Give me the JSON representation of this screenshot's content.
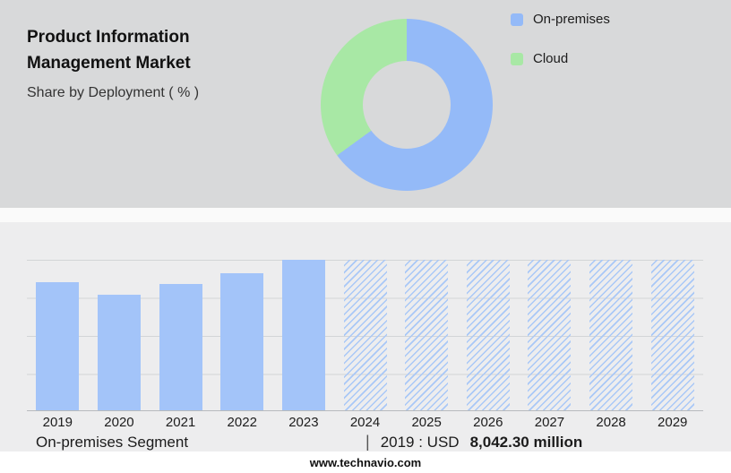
{
  "header": {
    "title": "Product Information Management Market",
    "subtitle": "Share by Deployment ( % )"
  },
  "colors": {
    "on_premises_blue": "#94baf8",
    "cloud_green": "#a8e8a5",
    "bar_blue": "#a3c4f9",
    "hatch_blue": "#a9c8f7",
    "top_background": "#d8d9da",
    "bottom_background": "#ededee"
  },
  "chart_data": [
    {
      "type": "pie",
      "subtype": "donut",
      "title": "Share by Deployment ( % )",
      "labels": [
        "On-premises",
        "Cloud"
      ],
      "values": [
        65,
        35
      ],
      "colors": [
        "#94baf8",
        "#a8e8a5"
      ],
      "legend_position": "right"
    },
    {
      "type": "bar",
      "title": "On-premises Segment (USD million)",
      "categories": [
        "2019",
        "2020",
        "2021",
        "2022",
        "2023",
        "2024",
        "2025",
        "2026",
        "2027",
        "2028",
        "2029"
      ],
      "values": [
        8042.3,
        7350,
        7950,
        8650,
        9500,
        null,
        null,
        null,
        null,
        null,
        null
      ],
      "bar_heights_pct": [
        85,
        77,
        84,
        91,
        100,
        100,
        100,
        100,
        100,
        100,
        100
      ],
      "forecast_from": "2024",
      "forecast_style": "hatched",
      "xlabel": "",
      "ylabel": "",
      "grid": true,
      "annotation": "2019 : USD 8,042.30 million"
    }
  ],
  "caption": {
    "segment_label": "On-premises Segment",
    "separator": "|",
    "value_prefix": "2019 : USD",
    "value_bold": "8,042.30 million"
  },
  "footer": {
    "url": "www.technavio.com"
  }
}
